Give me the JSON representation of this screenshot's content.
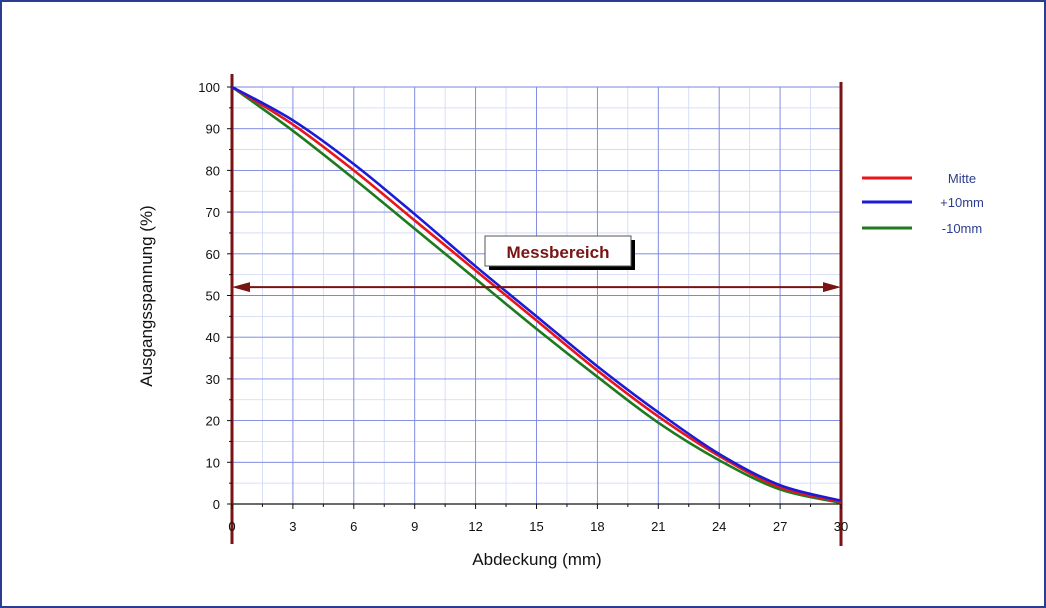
{
  "chart_data": {
    "type": "line",
    "title": "",
    "xlabel": "Abdeckung (mm)",
    "ylabel": "Ausgangsspannung (%)",
    "xlim": [
      0,
      30
    ],
    "ylim": [
      0,
      100
    ],
    "xticks": [
      0,
      3,
      6,
      9,
      12,
      15,
      18,
      21,
      24,
      27,
      30
    ],
    "yticks": [
      0,
      10,
      20,
      30,
      40,
      50,
      60,
      70,
      80,
      90,
      100
    ],
    "grid": true,
    "legend_position": "right",
    "x": [
      0,
      3,
      6,
      9,
      12,
      15,
      18,
      21,
      24,
      27,
      30
    ],
    "series": [
      {
        "name": "Mitte",
        "color": "#e8161b",
        "values": [
          100,
          91.0,
          80.0,
          68.0,
          56.0,
          44.0,
          32.0,
          21.0,
          11.5,
          4.0,
          0.5
        ]
      },
      {
        "name": "+10mm",
        "color": "#1c1cd6",
        "values": [
          100,
          92.0,
          81.5,
          69.5,
          57.0,
          45.0,
          33.0,
          22.0,
          12.0,
          4.5,
          0.8
        ]
      },
      {
        "name": "-10mm",
        "color": "#1d7a1d",
        "values": [
          100,
          89.5,
          78.0,
          66.0,
          54.0,
          42.0,
          30.5,
          19.5,
          10.5,
          3.5,
          0.3
        ]
      }
    ],
    "annotations": [
      {
        "text": "Messbereich",
        "y": 52,
        "x_range": [
          0,
          30
        ],
        "color": "#7a1414"
      }
    ]
  }
}
